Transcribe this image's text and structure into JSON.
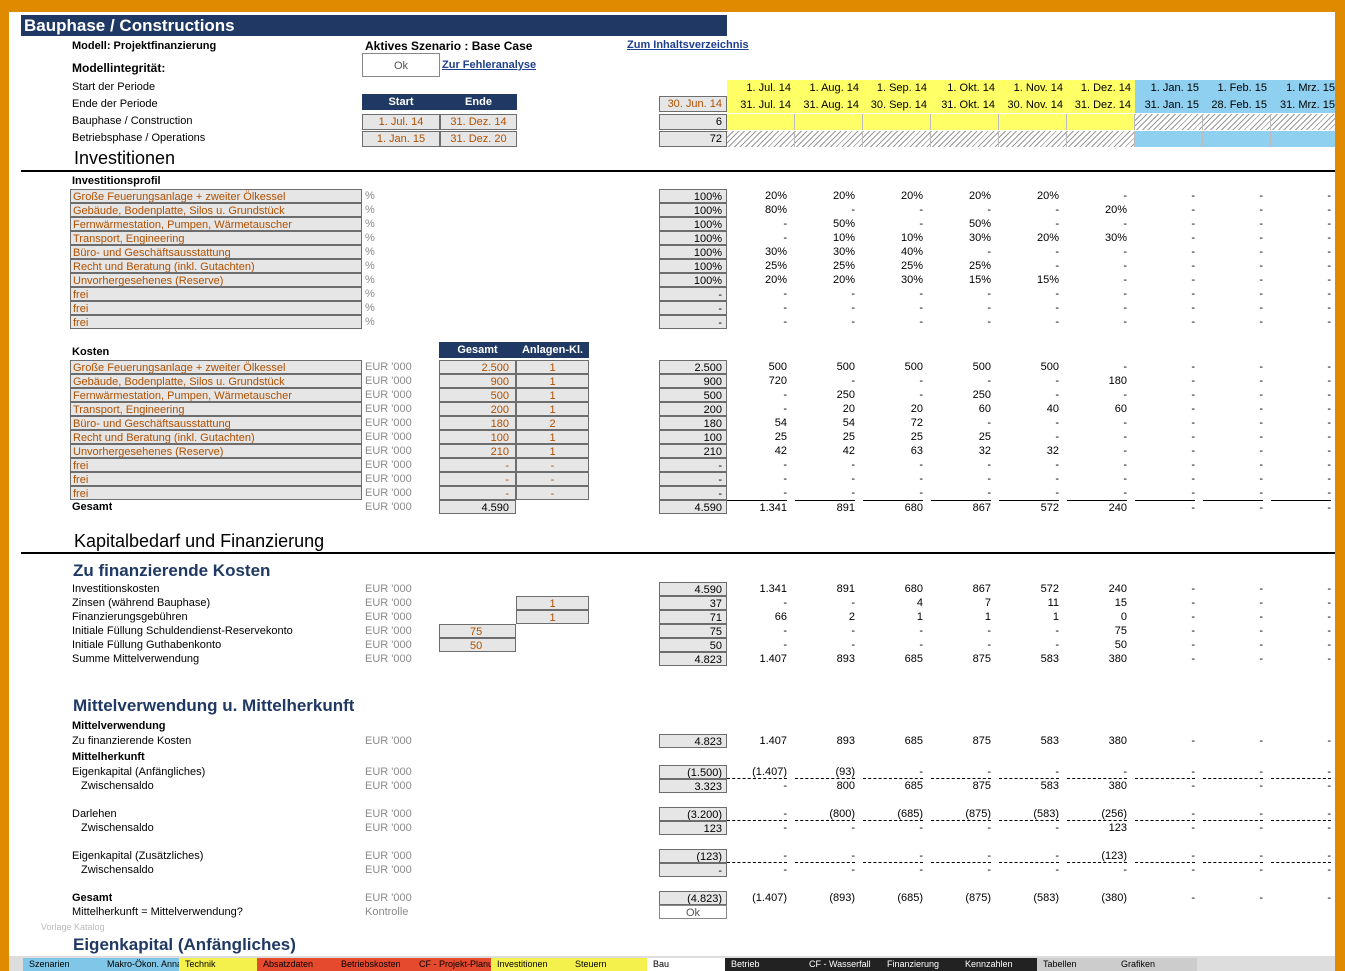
{
  "title": "Bauphase / Constructions",
  "model_label": "Modell: Projektfinanzierung",
  "scenario_label": "Aktives Szenario : Base Case",
  "toc_link": "Zum Inhaltsverzeichnis",
  "integrity_label": "Modellintegrität:",
  "integrity_value": "Ok",
  "error_link": "Zur Fehleranalyse",
  "period_start_label": "Start der Periode",
  "period_end_label": "Ende der Periode",
  "start_hdr": "Start",
  "end_hdr": "Ende",
  "period_total_end": "30. Jun. 14",
  "period_starts": [
    "1. Jul. 14",
    "1. Aug. 14",
    "1. Sep. 14",
    "1. Okt. 14",
    "1. Nov. 14",
    "1. Dez. 14",
    "1. Jan. 15",
    "1. Feb. 15",
    "1. Mrz. 15"
  ],
  "period_ends": [
    "31. Jul. 14",
    "31. Aug. 14",
    "30. Sep. 14",
    "31. Okt. 14",
    "30. Nov. 14",
    "31. Dez. 14",
    "31. Jan. 15",
    "28. Feb. 15",
    "31. Mrz. 15"
  ],
  "phases": [
    {
      "label": "Bauphase / Construction",
      "start": "1. Jul. 14",
      "end": "31. Dez. 14",
      "total": "6"
    },
    {
      "label": "Betriebsphase / Operations",
      "start": "1. Jan. 15",
      "end": "31. Dez. 20",
      "total": "72"
    }
  ],
  "sections": {
    "investitionen": "Investitionen",
    "investitionsprofil": "Investitionsprofil",
    "kosten": "Kosten",
    "gesamt_hdr": "Gesamt",
    "anlagen_hdr": "Anlagen-Kl.",
    "kapitalbedarf": "Kapitalbedarf und Finanzierung",
    "zu_fin": "Zu finanzierende Kosten",
    "mittel": "Mittelverwendung u. Mittelherkunft",
    "mittelverwendung": "Mittelverwendung",
    "mittelherkunft": "Mittelherkunft",
    "eigenkapital_anf": "Eigenkapital (Anfängliches)"
  },
  "profile": [
    {
      "label": "Große Feuerungsanlage + zweiter Ölkessel",
      "unit": "%",
      "total": "100%",
      "v": [
        "20%",
        "20%",
        "20%",
        "20%",
        "20%",
        "-",
        "-",
        "-",
        "-"
      ]
    },
    {
      "label": "Gebäude, Bodenplatte, Silos u. Grundstück",
      "unit": "%",
      "total": "100%",
      "v": [
        "80%",
        "-",
        "-",
        "-",
        "-",
        "20%",
        "-",
        "-",
        "-"
      ]
    },
    {
      "label": "Fernwärmestation, Pumpen, Wärmetauscher",
      "unit": "%",
      "total": "100%",
      "v": [
        "-",
        "50%",
        "-",
        "50%",
        "-",
        "-",
        "-",
        "-",
        "-"
      ]
    },
    {
      "label": "Transport, Engineering",
      "unit": "%",
      "total": "100%",
      "v": [
        "-",
        "10%",
        "10%",
        "30%",
        "20%",
        "30%",
        "-",
        "-",
        "-"
      ]
    },
    {
      "label": "Büro- und Geschäftsausstattung",
      "unit": "%",
      "total": "100%",
      "v": [
        "30%",
        "30%",
        "40%",
        "-",
        "-",
        "-",
        "-",
        "-",
        "-"
      ]
    },
    {
      "label": "Recht und Beratung (inkl. Gutachten)",
      "unit": "%",
      "total": "100%",
      "v": [
        "25%",
        "25%",
        "25%",
        "25%",
        "-",
        "-",
        "-",
        "-",
        "-"
      ]
    },
    {
      "label": "Unvorhergesehenes (Reserve)",
      "unit": "%",
      "total": "100%",
      "v": [
        "20%",
        "20%",
        "30%",
        "15%",
        "15%",
        "-",
        "-",
        "-",
        "-"
      ]
    },
    {
      "label": "frei",
      "unit": "%",
      "total": "-",
      "v": [
        "-",
        "-",
        "-",
        "-",
        "-",
        "-",
        "-",
        "-",
        "-"
      ]
    },
    {
      "label": "frei",
      "unit": "%",
      "total": "-",
      "v": [
        "-",
        "-",
        "-",
        "-",
        "-",
        "-",
        "-",
        "-",
        "-"
      ]
    },
    {
      "label": "frei",
      "unit": "%",
      "total": "-",
      "v": [
        "-",
        "-",
        "-",
        "-",
        "-",
        "-",
        "-",
        "-",
        "-"
      ]
    }
  ],
  "costs": [
    {
      "label": "Große Feuerungsanlage + zweiter Ölkessel",
      "unit": "EUR '000",
      "g": "2.500",
      "k": "1",
      "total": "2.500",
      "v": [
        "500",
        "500",
        "500",
        "500",
        "500",
        "-",
        "-",
        "-",
        "-"
      ]
    },
    {
      "label": "Gebäude, Bodenplatte, Silos u. Grundstück",
      "unit": "EUR '000",
      "g": "900",
      "k": "1",
      "total": "900",
      "v": [
        "720",
        "-",
        "-",
        "-",
        "-",
        "180",
        "-",
        "-",
        "-"
      ]
    },
    {
      "label": "Fernwärmestation, Pumpen, Wärmetauscher",
      "unit": "EUR '000",
      "g": "500",
      "k": "1",
      "total": "500",
      "v": [
        "-",
        "250",
        "-",
        "250",
        "-",
        "-",
        "-",
        "-",
        "-"
      ]
    },
    {
      "label": "Transport, Engineering",
      "unit": "EUR '000",
      "g": "200",
      "k": "1",
      "total": "200",
      "v": [
        "-",
        "20",
        "20",
        "60",
        "40",
        "60",
        "-",
        "-",
        "-"
      ]
    },
    {
      "label": "Büro- und Geschäftsausstattung",
      "unit": "EUR '000",
      "g": "180",
      "k": "2",
      "total": "180",
      "v": [
        "54",
        "54",
        "72",
        "-",
        "-",
        "-",
        "-",
        "-",
        "-"
      ]
    },
    {
      "label": "Recht und Beratung (inkl. Gutachten)",
      "unit": "EUR '000",
      "g": "100",
      "k": "1",
      "total": "100",
      "v": [
        "25",
        "25",
        "25",
        "25",
        "-",
        "-",
        "-",
        "-",
        "-"
      ]
    },
    {
      "label": "Unvorhergesehenes (Reserve)",
      "unit": "EUR '000",
      "g": "210",
      "k": "1",
      "total": "210",
      "v": [
        "42",
        "42",
        "63",
        "32",
        "32",
        "-",
        "-",
        "-",
        "-"
      ]
    },
    {
      "label": "frei",
      "unit": "EUR '000",
      "g": "-",
      "k": "-",
      "total": "-",
      "v": [
        "-",
        "-",
        "-",
        "-",
        "-",
        "-",
        "-",
        "-",
        "-"
      ]
    },
    {
      "label": "frei",
      "unit": "EUR '000",
      "g": "-",
      "k": "-",
      "total": "-",
      "v": [
        "-",
        "-",
        "-",
        "-",
        "-",
        "-",
        "-",
        "-",
        "-"
      ]
    },
    {
      "label": "frei",
      "unit": "EUR '000",
      "g": "-",
      "k": "-",
      "total": "-",
      "v": [
        "-",
        "-",
        "-",
        "-",
        "-",
        "-",
        "-",
        "-",
        "-"
      ]
    }
  ],
  "costs_total": {
    "label": "Gesamt",
    "unit": "EUR '000",
    "g": "4.590",
    "total": "4.590",
    "v": [
      "1.341",
      "891",
      "680",
      "867",
      "572",
      "240",
      "-",
      "-",
      "-"
    ]
  },
  "financing": [
    {
      "label": "Investitionskosten",
      "unit": "EUR '000",
      "in": "",
      "k": "",
      "total": "4.590",
      "v": [
        "1.341",
        "891",
        "680",
        "867",
        "572",
        "240",
        "-",
        "-",
        "-"
      ]
    },
    {
      "label": "Zinsen (während Bauphase)",
      "unit": "EUR '000",
      "in": "",
      "k": "1",
      "total": "37",
      "v": [
        "-",
        "-",
        "4",
        "7",
        "11",
        "15",
        "-",
        "-",
        "-"
      ]
    },
    {
      "label": "Finanzierungsgebühren",
      "unit": "EUR '000",
      "in": "",
      "k": "1",
      "total": "71",
      "v": [
        "66",
        "2",
        "1",
        "1",
        "1",
        "0",
        "-",
        "-",
        "-"
      ]
    },
    {
      "label": "Initiale Füllung Schuldendienst-Reservekonto",
      "unit": "EUR '000",
      "in": "75",
      "k": "",
      "total": "75",
      "v": [
        "-",
        "-",
        "-",
        "-",
        "-",
        "75",
        "-",
        "-",
        "-"
      ]
    },
    {
      "label": "Initiale Füllung Guthabenkonto",
      "unit": "EUR '000",
      "in": "50",
      "k": "",
      "total": "50",
      "v": [
        "-",
        "-",
        "-",
        "-",
        "-",
        "50",
        "-",
        "-",
        "-"
      ]
    },
    {
      "label": "Summe Mittelverwendung",
      "unit": "EUR '000",
      "in": "",
      "k": "",
      "total": "4.823",
      "v": [
        "1.407",
        "893",
        "685",
        "875",
        "583",
        "380",
        "-",
        "-",
        "-"
      ]
    }
  ],
  "uses_row": {
    "label": "Zu finanzierende Kosten",
    "unit": "EUR '000",
    "total": "4.823",
    "v": [
      "1.407",
      "893",
      "685",
      "875",
      "583",
      "380",
      "-",
      "-",
      "-"
    ]
  },
  "sources": [
    {
      "label": "Eigenkapital (Anfängliches)",
      "unit": "EUR '000",
      "total": "(1.500)",
      "v": [
        "(1.407)",
        "(93)",
        "-",
        "-",
        "-",
        "-",
        "-",
        "-",
        "-"
      ],
      "dash": true,
      "indent": false
    },
    {
      "label": "Zwischensaldo",
      "unit": "EUR '000",
      "total": "3.323",
      "v": [
        "-",
        "800",
        "685",
        "875",
        "583",
        "380",
        "-",
        "-",
        "-"
      ],
      "dash": false,
      "indent": true
    },
    {
      "label": "Darlehen",
      "unit": "EUR '000",
      "total": "(3.200)",
      "v": [
        "-",
        "(800)",
        "(685)",
        "(875)",
        "(583)",
        "(256)",
        "-",
        "-",
        "-"
      ],
      "dash": true,
      "indent": false
    },
    {
      "label": "Zwischensaldo",
      "unit": "EUR '000",
      "total": "123",
      "v": [
        "-",
        "-",
        "-",
        "-",
        "-",
        "123",
        "-",
        "-",
        "-"
      ],
      "dash": false,
      "indent": true
    },
    {
      "label": "Eigenkapital (Zusätzliches)",
      "unit": "EUR '000",
      "total": "(123)",
      "v": [
        "-",
        "-",
        "-",
        "-",
        "-",
        "(123)",
        "-",
        "-",
        "-"
      ],
      "dash": true,
      "indent": false
    },
    {
      "label": "Zwischensaldo",
      "unit": "EUR '000",
      "total": "-",
      "v": [
        "-",
        "-",
        "-",
        "-",
        "-",
        "-",
        "-",
        "-",
        "-"
      ],
      "dash": false,
      "indent": true
    }
  ],
  "grand_total": {
    "label": "Gesamt",
    "unit": "EUR '000",
    "total": "(4.823)",
    "v": [
      "(1.407)",
      "(893)",
      "(685)",
      "(875)",
      "(583)",
      "(380)",
      "-",
      "-",
      "-"
    ]
  },
  "check_row": {
    "label": "Mittelherkunft = Mittelverwendung?",
    "unit": "Kontrolle",
    "total": "Ok"
  },
  "watermark": "Vorlage Katalog",
  "tabs": [
    {
      "label": "Szenarien",
      "color": "#7fc6e8"
    },
    {
      "label": "Makro-Ökon. Annahmen",
      "color": "#7fc6e8"
    },
    {
      "label": "Technik",
      "color": "#f4f04c"
    },
    {
      "label": "Absatzdaten",
      "color": "#e64a2e"
    },
    {
      "label": "Betriebskosten",
      "color": "#e64a2e"
    },
    {
      "label": "CF - Projekt-Planung",
      "color": "#e64a2e"
    },
    {
      "label": "Investitionen",
      "color": "#f4f04c"
    },
    {
      "label": "Steuern",
      "color": "#f4f04c"
    },
    {
      "label": "Bau",
      "color": "#ffffff"
    },
    {
      "label": "Betrieb",
      "color": "#222222"
    },
    {
      "label": "CF - Wasserfall",
      "color": "#222222"
    },
    {
      "label": "Finanzierung",
      "color": "#222222"
    },
    {
      "label": "Kennzahlen",
      "color": "#222222"
    },
    {
      "label": "Tabellen",
      "color": "#cccccc"
    },
    {
      "label": "Grafiken",
      "color": "#cccccc"
    }
  ]
}
